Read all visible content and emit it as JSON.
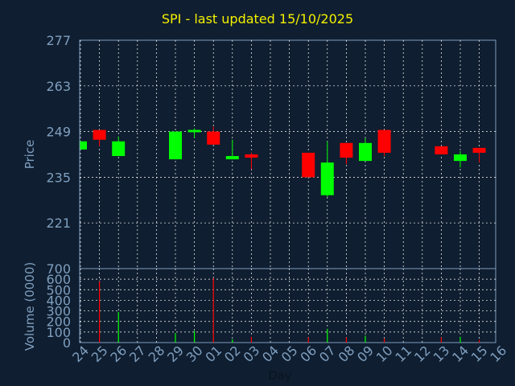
{
  "chart_data": {
    "type": "candlestick",
    "title": "SPI - last updated 15/10/2025",
    "xlabel": "Day",
    "price_panel": {
      "ylabel": "Price",
      "ylim": [
        207,
        277
      ],
      "yticks": [
        277,
        263,
        249,
        235,
        221
      ]
    },
    "volume_panel": {
      "ylabel": "Volume (0000)",
      "ylim": [
        0,
        700
      ],
      "yticks": [
        700,
        600,
        500,
        400,
        300,
        200,
        100,
        0
      ]
    },
    "categories": [
      "24",
      "25",
      "26",
      "27",
      "28",
      "29",
      "30",
      "01",
      "02",
      "03",
      "04",
      "05",
      "06",
      "07",
      "08",
      "09",
      "10",
      "11",
      "12",
      "13",
      "14",
      "15",
      "16"
    ],
    "colors": {
      "up": "#00ff00",
      "down": "#ff0000",
      "background": "#0f1e30",
      "axis_text": "#7f9fbf",
      "grid": "#ffffff",
      "title": "#f4f000"
    },
    "candles": [
      {
        "x": "24",
        "open": 243.5,
        "close": 246.0,
        "high": 246.0,
        "low": 243.5,
        "volume": 0
      },
      {
        "x": "25",
        "open": 249.5,
        "close": 246.5,
        "high": 249.5,
        "low": 244.5,
        "volume": 580
      },
      {
        "x": "26",
        "open": 241.5,
        "close": 246.0,
        "high": 247.5,
        "low": 241.5,
        "volume": 290
      },
      {
        "x": "29",
        "open": 240.5,
        "close": 249.0,
        "high": 249.0,
        "low": 240.5,
        "volume": 90
      },
      {
        "x": "30",
        "open": 248.8,
        "close": 249.5,
        "high": 250.0,
        "low": 247.0,
        "volume": 110
      },
      {
        "x": "01",
        "open": 249.0,
        "close": 245.0,
        "high": 250.5,
        "low": 245.0,
        "volume": 610
      },
      {
        "x": "02",
        "open": 240.5,
        "close": 241.5,
        "high": 246.5,
        "low": 240.5,
        "volume": 30
      },
      {
        "x": "03",
        "open": 242.0,
        "close": 241.0,
        "high": 242.5,
        "low": 237.5,
        "volume": 55
      },
      {
        "x": "06",
        "open": 242.5,
        "close": 235.0,
        "high": 242.5,
        "low": 235.0,
        "volume": 50
      },
      {
        "x": "07",
        "open": 229.5,
        "close": 239.5,
        "high": 246.0,
        "low": 229.0,
        "volume": 130
      },
      {
        "x": "08",
        "open": 245.5,
        "close": 241.0,
        "high": 245.5,
        "low": 239.0,
        "volume": 50
      },
      {
        "x": "09",
        "open": 240.0,
        "close": 245.5,
        "high": 247.0,
        "low": 240.0,
        "volume": 65
      },
      {
        "x": "10",
        "open": 249.5,
        "close": 242.5,
        "high": 249.5,
        "low": 241.5,
        "volume": 40
      },
      {
        "x": "13",
        "open": 244.5,
        "close": 242.0,
        "high": 244.5,
        "low": 242.0,
        "volume": 50
      },
      {
        "x": "14",
        "open": 240.0,
        "close": 242.0,
        "high": 243.0,
        "low": 238.0,
        "volume": 55
      },
      {
        "x": "15",
        "open": 244.0,
        "close": 242.5,
        "high": 244.0,
        "low": 239.5,
        "volume": 25
      }
    ]
  }
}
